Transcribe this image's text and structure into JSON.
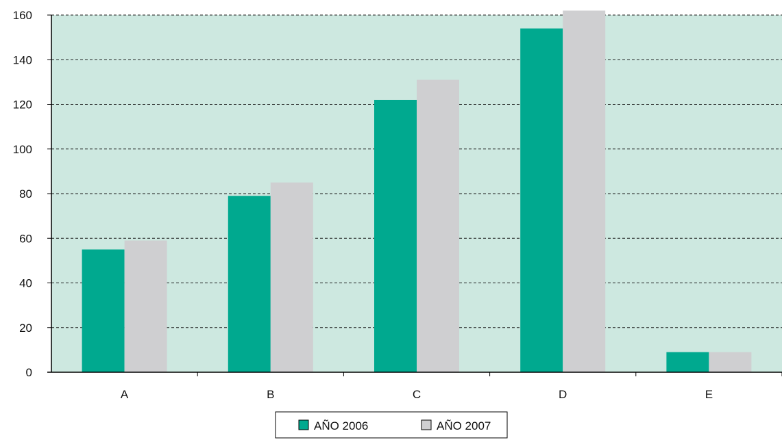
{
  "chart_data": {
    "type": "bar",
    "title": "",
    "xlabel": "",
    "ylabel": "",
    "categories": [
      "A",
      "B",
      "C",
      "D",
      "E"
    ],
    "series": [
      {
        "name": "AÑO 2006",
        "values": [
          55,
          79,
          122,
          154,
          9
        ],
        "color": "#00A98F"
      },
      {
        "name": "AÑO 2007",
        "values": [
          59,
          85,
          131,
          162,
          9
        ],
        "color": "#CFCFD1"
      }
    ],
    "ylim": [
      0,
      160
    ],
    "y_ticks": [
      0,
      20,
      40,
      60,
      80,
      100,
      120,
      140,
      160
    ],
    "grid": true,
    "grid_style": "dashed",
    "plot_background": "#CDE8E0",
    "legend_position": "bottom-center"
  }
}
